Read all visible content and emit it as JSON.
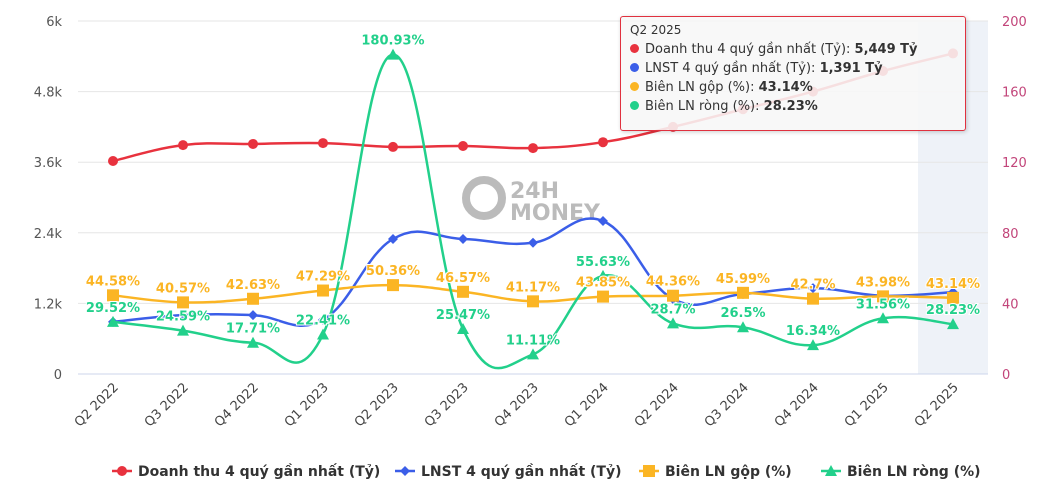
{
  "chart_data": {
    "type": "line",
    "categories": [
      "Q2 2022",
      "Q3 2022",
      "Q4 2022",
      "Q1 2023",
      "Q2 2023",
      "Q3 2023",
      "Q4 2023",
      "Q1 2024",
      "Q2 2024",
      "Q3 2024",
      "Q4 2024",
      "Q1 2025",
      "Q2 2025"
    ],
    "y_left": {
      "range": [
        0,
        6000
      ],
      "ticks": [
        "0",
        "1.2k",
        "2.4k",
        "3.6k",
        "4.8k",
        "6k"
      ]
    },
    "y_right": {
      "range": [
        0,
        200
      ],
      "ticks": [
        "0",
        "40",
        "80",
        "120",
        "160",
        "200"
      ]
    },
    "grid": true,
    "legend_position": "bottom",
    "series": [
      {
        "name": "Doanh thu 4 quý gần nhất (Tỷ)",
        "axis": "left",
        "color": "#e8323e",
        "marker": "circle",
        "values": [
          3620,
          3890,
          3910,
          3925,
          3860,
          3875,
          3840,
          3940,
          4200,
          4500,
          4800,
          5150,
          5449
        ]
      },
      {
        "name": "LNST 4 quý gần nhất (Tỷ)",
        "axis": "left",
        "color": "#3b5ee8",
        "marker": "diamond",
        "values": [
          885,
          1000,
          1000,
          920,
          2295,
          2295,
          2230,
          2600,
          1275,
          1360,
          1460,
          1330,
          1391
        ]
      },
      {
        "name": "Biên LN gộp (%)",
        "axis": "right",
        "color": "#fbb524",
        "marker": "square",
        "values": [
          44.58,
          40.57,
          42.63,
          47.29,
          50.36,
          46.57,
          41.17,
          43.85,
          44.36,
          45.99,
          42.7,
          43.98,
          43.14
        ],
        "labels": [
          "44.58%",
          "40.57%",
          "42.63%",
          "47.29%",
          "50.36%",
          "46.57%",
          "41.17%",
          "43.85%",
          "44.36%",
          "45.99%",
          "42.7%",
          "43.98%",
          "43.14%"
        ]
      },
      {
        "name": "Biên LN ròng (%)",
        "axis": "right",
        "color": "#22d08b",
        "marker": "triangle",
        "values": [
          29.52,
          24.59,
          17.71,
          22.41,
          180.93,
          25.47,
          11.11,
          55.63,
          28.7,
          26.5,
          16.34,
          31.56,
          28.23
        ],
        "labels": [
          "29.52%",
          "24.59%",
          "17.71%",
          "22.41%",
          "180.93%",
          "25.47%",
          "11.11%",
          "55.63%",
          "28.7%",
          "26.5%",
          "16.34%",
          "31.56%",
          "28.23%"
        ]
      }
    ]
  },
  "tooltip": {
    "title": "Q2 2025",
    "rows": [
      {
        "label": "Doanh thu 4 quý gần nhất (Tỷ): ",
        "value": "5,449 Tỷ",
        "color": "#e8323e"
      },
      {
        "label": "LNST 4 quý gần nhất (Tỷ): ",
        "value": "1,391 Tỷ",
        "color": "#3b5ee8"
      },
      {
        "label": "Biên LN gộp (%): ",
        "value": "43.14%",
        "color": "#fbb524"
      },
      {
        "label": "Biên LN ròng (%): ",
        "value": "28.23%",
        "color": "#22d08b"
      }
    ]
  },
  "watermark": "24H MONEY"
}
